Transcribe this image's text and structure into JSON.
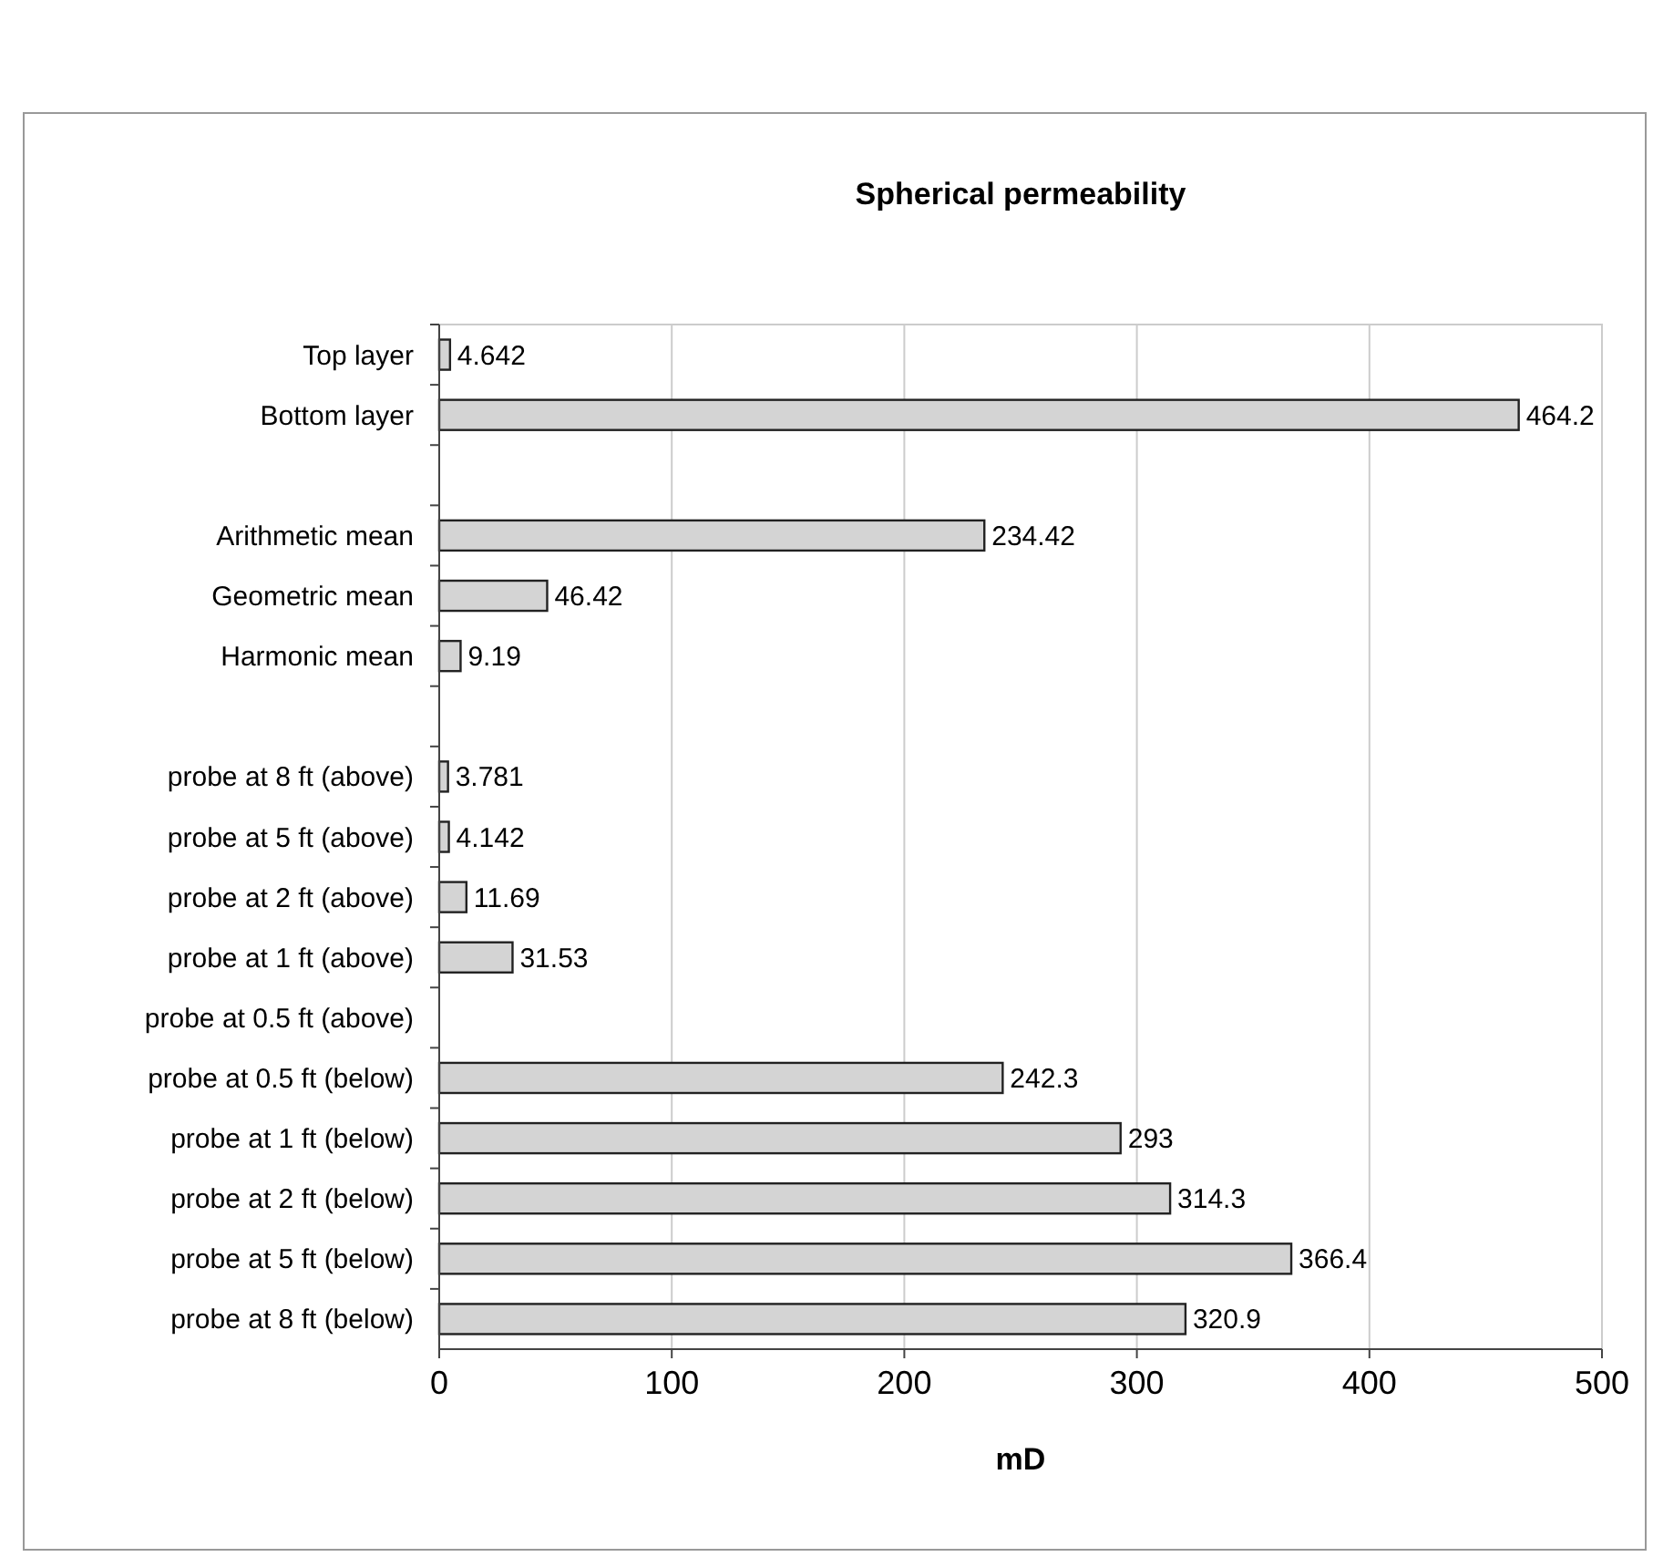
{
  "chart_data": {
    "type": "bar",
    "orientation": "horizontal",
    "title": "Spherical permeability",
    "xlabel": "mD",
    "categories": [
      "Top layer",
      "Bottom layer",
      null,
      "Arithmetic mean",
      "Geometric mean",
      "Harmonic mean",
      null,
      "probe at 8 ft (above)",
      "probe at 5 ft (above)",
      "probe at 2 ft (above)",
      "probe at 1 ft (above)",
      "probe at 0.5 ft (above)",
      "probe at 0.5 ft (below)",
      "probe at 1 ft (below)",
      "probe at 2 ft (below)",
      "probe at 5 ft (below)",
      "probe at 8 ft (below)"
    ],
    "values": [
      4.642,
      464.2,
      null,
      234.42,
      46.42,
      9.19,
      null,
      3.781,
      4.142,
      11.69,
      31.53,
      null,
      242.3,
      293,
      314.3,
      366.4,
      320.9
    ],
    "color": "#d4d4d4",
    "xlim": [
      0,
      500
    ],
    "xticks": [
      0,
      100,
      200,
      300,
      400,
      500
    ],
    "grid": "x",
    "data_labels": true
  }
}
